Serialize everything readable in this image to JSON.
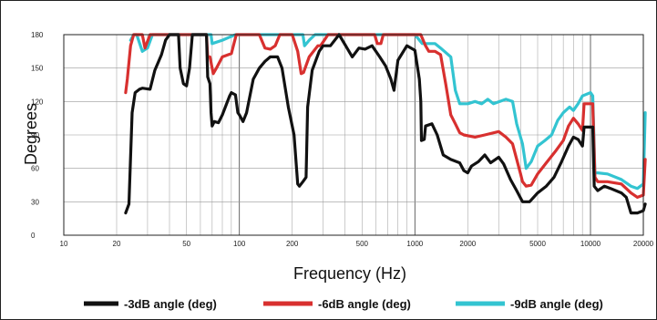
{
  "chart_data": {
    "type": "line",
    "title": "",
    "xlabel": "Frequency (Hz)",
    "ylabel": "Degrees",
    "x_scale": "log",
    "xlim": [
      10,
      20000
    ],
    "ylim": [
      0,
      180
    ],
    "x_ticks": [
      10,
      20,
      50,
      100,
      200,
      500,
      1000,
      2000,
      5000,
      10000,
      20000
    ],
    "y_ticks": [
      0,
      30,
      60,
      90,
      120,
      150,
      180
    ],
    "grid": true,
    "legend_position": "bottom",
    "series": [
      {
        "name": "-3dB angle (deg)",
        "color": "#111111",
        "points": [
          [
            22.5,
            20
          ],
          [
            23.5,
            28
          ],
          [
            24.5,
            110
          ],
          [
            25.5,
            128
          ],
          [
            27,
            131
          ],
          [
            28,
            132
          ],
          [
            31,
            131
          ],
          [
            33,
            148
          ],
          [
            36,
            162
          ],
          [
            38,
            175
          ],
          [
            40,
            180
          ],
          [
            45,
            180
          ],
          [
            46,
            150
          ],
          [
            48,
            136
          ],
          [
            50,
            134
          ],
          [
            52,
            150
          ],
          [
            54,
            180
          ],
          [
            65,
            180
          ],
          [
            66,
            142
          ],
          [
            68,
            136
          ],
          [
            69,
            110
          ],
          [
            70,
            98
          ],
          [
            72,
            102
          ],
          [
            76,
            101
          ],
          [
            80,
            108
          ],
          [
            88,
            125
          ],
          [
            90,
            128
          ],
          [
            95,
            126
          ],
          [
            98,
            110
          ],
          [
            100,
            108
          ],
          [
            105,
            102
          ],
          [
            110,
            110
          ],
          [
            120,
            140
          ],
          [
            130,
            150
          ],
          [
            140,
            156
          ],
          [
            150,
            160
          ],
          [
            165,
            160
          ],
          [
            175,
            150
          ],
          [
            190,
            115
          ],
          [
            205,
            90
          ],
          [
            215,
            46
          ],
          [
            220,
            44
          ],
          [
            230,
            48
          ],
          [
            240,
            52
          ],
          [
            245,
            115
          ],
          [
            260,
            148
          ],
          [
            285,
            165
          ],
          [
            300,
            170
          ],
          [
            330,
            170
          ],
          [
            370,
            180
          ],
          [
            440,
            160
          ],
          [
            480,
            168
          ],
          [
            520,
            167
          ],
          [
            570,
            170
          ],
          [
            630,
            160
          ],
          [
            680,
            152
          ],
          [
            730,
            140
          ],
          [
            760,
            130
          ],
          [
            800,
            157
          ],
          [
            900,
            170
          ],
          [
            1000,
            166
          ],
          [
            1060,
            140
          ],
          [
            1080,
            120
          ],
          [
            1090,
            85
          ],
          [
            1130,
            86
          ],
          [
            1150,
            98
          ],
          [
            1250,
            100
          ],
          [
            1340,
            90
          ],
          [
            1450,
            72
          ],
          [
            1600,
            68
          ],
          [
            1800,
            65
          ],
          [
            1900,
            58
          ],
          [
            2000,
            56
          ],
          [
            2100,
            62
          ],
          [
            2300,
            66
          ],
          [
            2500,
            72
          ],
          [
            2700,
            65
          ],
          [
            3000,
            70
          ],
          [
            3200,
            64
          ],
          [
            3500,
            50
          ],
          [
            3800,
            40
          ],
          [
            4100,
            30
          ],
          [
            4500,
            30
          ],
          [
            5000,
            38
          ],
          [
            5600,
            44
          ],
          [
            6200,
            52
          ],
          [
            6800,
            65
          ],
          [
            7500,
            80
          ],
          [
            8000,
            88
          ],
          [
            8500,
            86
          ],
          [
            9000,
            80
          ],
          [
            9200,
            97
          ],
          [
            10300,
            97
          ],
          [
            10500,
            44
          ],
          [
            11000,
            40
          ],
          [
            12000,
            44
          ],
          [
            13000,
            42
          ],
          [
            15000,
            38
          ],
          [
            16000,
            34
          ],
          [
            17000,
            20
          ],
          [
            18500,
            20
          ],
          [
            20000,
            22
          ],
          [
            20500,
            28
          ]
        ]
      },
      {
        "name": "-6dB angle (deg)",
        "color": "#d8302f",
        "points": [
          [
            22.5,
            128
          ],
          [
            23,
            140
          ],
          [
            24,
            170
          ],
          [
            25,
            180
          ],
          [
            28,
            180
          ],
          [
            29,
            168
          ],
          [
            31,
            180
          ],
          [
            65,
            180
          ],
          [
            66,
            160
          ],
          [
            68,
            160
          ],
          [
            71,
            145
          ],
          [
            74,
            150
          ],
          [
            80,
            160
          ],
          [
            90,
            163
          ],
          [
            96,
            180
          ],
          [
            130,
            180
          ],
          [
            140,
            168
          ],
          [
            150,
            167
          ],
          [
            160,
            170
          ],
          [
            170,
            180
          ],
          [
            200,
            180
          ],
          [
            215,
            165
          ],
          [
            225,
            145
          ],
          [
            232,
            146
          ],
          [
            250,
            160
          ],
          [
            280,
            170
          ],
          [
            290,
            170
          ],
          [
            320,
            180
          ],
          [
            590,
            180
          ],
          [
            610,
            172
          ],
          [
            640,
            172
          ],
          [
            660,
            180
          ],
          [
            730,
            180
          ],
          [
            800,
            180
          ],
          [
            950,
            180
          ],
          [
            1080,
            180
          ],
          [
            1150,
            170
          ],
          [
            1200,
            165
          ],
          [
            1300,
            165
          ],
          [
            1400,
            162
          ],
          [
            1500,
            135
          ],
          [
            1600,
            108
          ],
          [
            1700,
            100
          ],
          [
            1800,
            92
          ],
          [
            1900,
            90
          ],
          [
            2200,
            88
          ],
          [
            2500,
            90
          ],
          [
            3000,
            93
          ],
          [
            3300,
            88
          ],
          [
            3600,
            82
          ],
          [
            4000,
            55
          ],
          [
            4100,
            48
          ],
          [
            4300,
            44
          ],
          [
            4600,
            45
          ],
          [
            5000,
            55
          ],
          [
            5600,
            65
          ],
          [
            6300,
            75
          ],
          [
            7000,
            85
          ],
          [
            7500,
            98
          ],
          [
            8000,
            105
          ],
          [
            8500,
            100
          ],
          [
            9000,
            94
          ],
          [
            9200,
            118
          ],
          [
            10000,
            118
          ],
          [
            10300,
            118
          ],
          [
            10600,
            52
          ],
          [
            11000,
            48
          ],
          [
            12500,
            48
          ],
          [
            15000,
            46
          ],
          [
            17000,
            38
          ],
          [
            18500,
            34
          ],
          [
            20000,
            36
          ],
          [
            20500,
            68
          ]
        ]
      },
      {
        "name": "-9dB angle (deg)",
        "color": "#33c4d1",
        "points": [
          [
            24,
            175
          ],
          [
            25,
            180
          ],
          [
            26,
            180
          ],
          [
            28,
            165
          ],
          [
            30,
            168
          ],
          [
            32,
            180
          ],
          [
            69,
            180
          ],
          [
            70,
            172
          ],
          [
            80,
            175
          ],
          [
            95,
            180
          ],
          [
            230,
            180
          ],
          [
            235,
            170
          ],
          [
            250,
            175
          ],
          [
            270,
            180
          ],
          [
            1000,
            180
          ],
          [
            1100,
            172
          ],
          [
            1300,
            172
          ],
          [
            1400,
            168
          ],
          [
            1600,
            160
          ],
          [
            1700,
            130
          ],
          [
            1800,
            118
          ],
          [
            2000,
            118
          ],
          [
            2200,
            120
          ],
          [
            2400,
            118
          ],
          [
            2600,
            122
          ],
          [
            2800,
            118
          ],
          [
            3300,
            122
          ],
          [
            3600,
            120
          ],
          [
            3800,
            100
          ],
          [
            4100,
            82
          ],
          [
            4300,
            60
          ],
          [
            4600,
            66
          ],
          [
            5000,
            80
          ],
          [
            5500,
            85
          ],
          [
            6000,
            90
          ],
          [
            6500,
            103
          ],
          [
            7000,
            110
          ],
          [
            7600,
            115
          ],
          [
            8000,
            112
          ],
          [
            8500,
            118
          ],
          [
            9000,
            125
          ],
          [
            10000,
            128
          ],
          [
            10300,
            125
          ],
          [
            10600,
            56
          ],
          [
            11000,
            56
          ],
          [
            12500,
            55
          ],
          [
            15000,
            50
          ],
          [
            17000,
            44
          ],
          [
            18500,
            42
          ],
          [
            20000,
            46
          ],
          [
            20500,
            110
          ]
        ]
      }
    ]
  }
}
